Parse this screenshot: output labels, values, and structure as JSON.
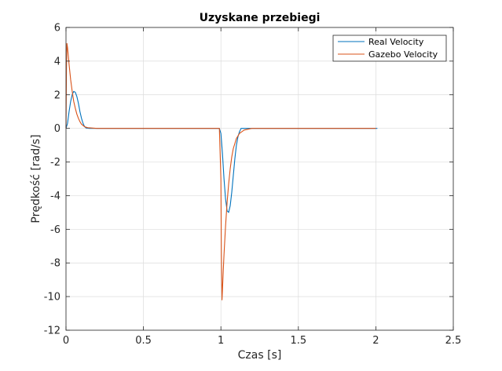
{
  "chart_data": {
    "type": "line",
    "title": "Uzyskane przebiegi",
    "xlabel": "Czas [s]",
    "ylabel": "Prędkość [rad/s]",
    "xlim": [
      0,
      2.5
    ],
    "ylim": [
      -12,
      6
    ],
    "xticks": [
      0,
      0.5,
      1,
      1.5,
      2,
      2.5
    ],
    "xtick_labels": [
      "0",
      "0.5",
      "1",
      "1.5",
      "2",
      "2.5"
    ],
    "yticks": [
      -12,
      -10,
      -8,
      -6,
      -4,
      -2,
      0,
      2,
      4,
      6
    ],
    "ytick_labels": [
      "-12",
      "-10",
      "-8",
      "-6",
      "-4",
      "-2",
      "0",
      "2",
      "4",
      "6"
    ],
    "grid": true,
    "legend_position": "top-right",
    "series": [
      {
        "name": "Real Velocity",
        "color": "#0072bd",
        "x": [
          0,
          0.01,
          0.02,
          0.03,
          0.04,
          0.05,
          0.06,
          0.07,
          0.08,
          0.09,
          0.1,
          0.11,
          0.12,
          0.13,
          0.15,
          0.3,
          0.6,
          0.99,
          1.0,
          1.01,
          1.02,
          1.03,
          1.04,
          1.05,
          1.06,
          1.07,
          1.08,
          1.09,
          1.1,
          1.11,
          1.12,
          1.13,
          1.2,
          1.6,
          2.01
        ],
        "y": [
          0,
          0.3,
          1.0,
          1.6,
          2.0,
          2.2,
          2.15,
          1.9,
          1.5,
          1.0,
          0.6,
          0.3,
          0.1,
          0.02,
          0,
          0,
          0,
          0,
          -0.3,
          -1.5,
          -3.0,
          -4.2,
          -4.9,
          -5.0,
          -4.6,
          -3.8,
          -2.8,
          -1.8,
          -1.0,
          -0.5,
          -0.2,
          0,
          0,
          0,
          0
        ]
      },
      {
        "name": "Gazebo Velocity",
        "color": "#d95319",
        "x": [
          0,
          0.003,
          0.006,
          0.01,
          0.015,
          0.02,
          0.03,
          0.04,
          0.05,
          0.06,
          0.07,
          0.08,
          0.09,
          0.1,
          0.12,
          0.14,
          0.2,
          0.5,
          0.99,
          1.0,
          1.003,
          1.007,
          1.01,
          1.015,
          1.02,
          1.03,
          1.04,
          1.05,
          1.06,
          1.07,
          1.08,
          1.1,
          1.12,
          1.15,
          1.2,
          1.6,
          2.0
        ],
        "y": [
          0,
          3.5,
          5.05,
          4.8,
          4.3,
          3.8,
          2.9,
          2.2,
          1.6,
          1.2,
          0.85,
          0.6,
          0.4,
          0.25,
          0.1,
          0.04,
          0,
          0,
          0,
          -3.0,
          -7.5,
          -10.2,
          -9.6,
          -8.5,
          -7.5,
          -5.8,
          -4.4,
          -3.3,
          -2.4,
          -1.7,
          -1.2,
          -0.6,
          -0.3,
          -0.1,
          0,
          0,
          0
        ]
      }
    ]
  }
}
